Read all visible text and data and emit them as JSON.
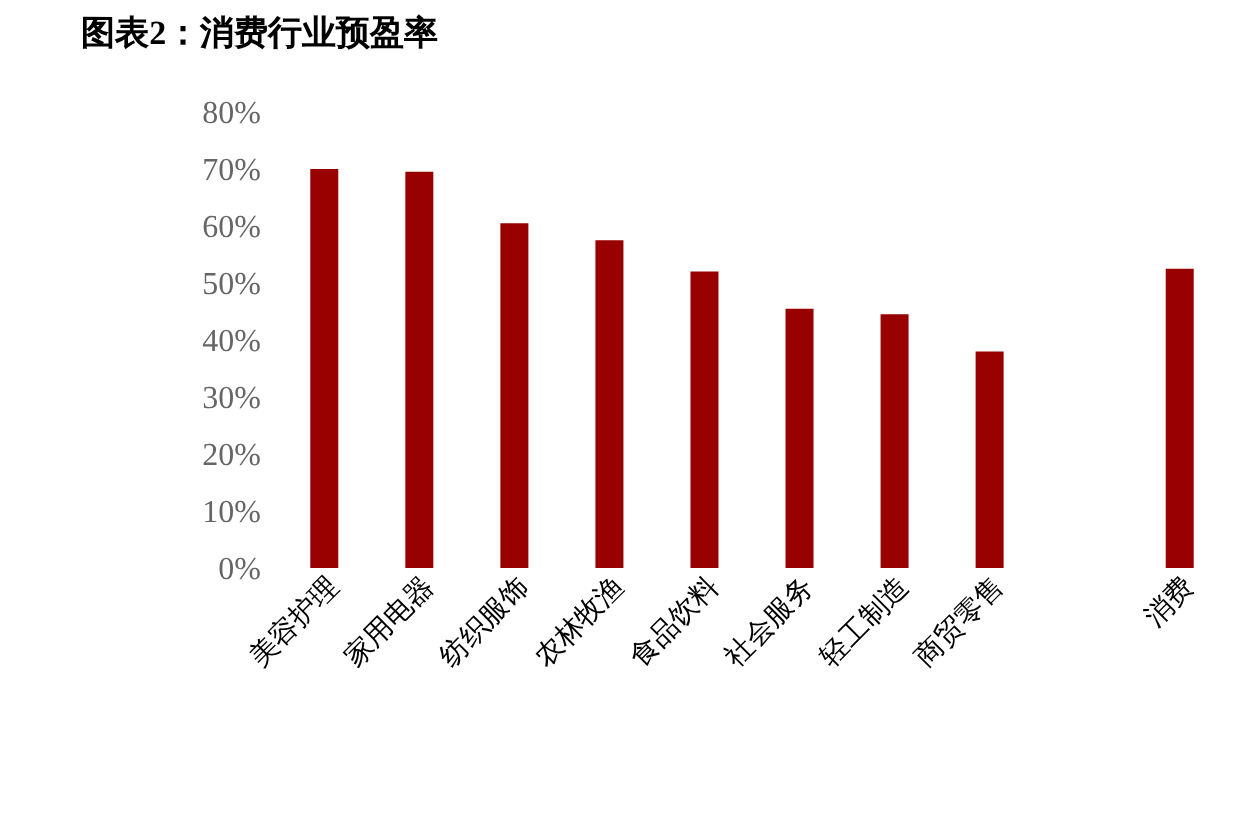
{
  "chart_data": {
    "type": "bar",
    "title": "图表2：消费行业预盈率",
    "categories": [
      "美容护理",
      "家用电器",
      "纺织服饰",
      "农林牧渔",
      "食品饮料",
      "社会服务",
      "轻工制造",
      "商贸零售",
      null,
      "消费"
    ],
    "values": [
      70,
      69.5,
      60.5,
      57.5,
      52,
      45.5,
      44.5,
      38,
      null,
      52.5
    ],
    "color": "#990000",
    "ylim": [
      0,
      80
    ],
    "yticks": [
      {
        "value": 0,
        "label": "0%"
      },
      {
        "value": 10,
        "label": "10%"
      },
      {
        "value": 20,
        "label": "20%"
      },
      {
        "value": 30,
        "label": "30%"
      },
      {
        "value": 40,
        "label": "40%"
      },
      {
        "value": 50,
        "label": "50%"
      },
      {
        "value": 60,
        "label": "60%"
      },
      {
        "value": 70,
        "label": "70%"
      },
      {
        "value": 80,
        "label": "80%"
      }
    ],
    "grid": false
  }
}
